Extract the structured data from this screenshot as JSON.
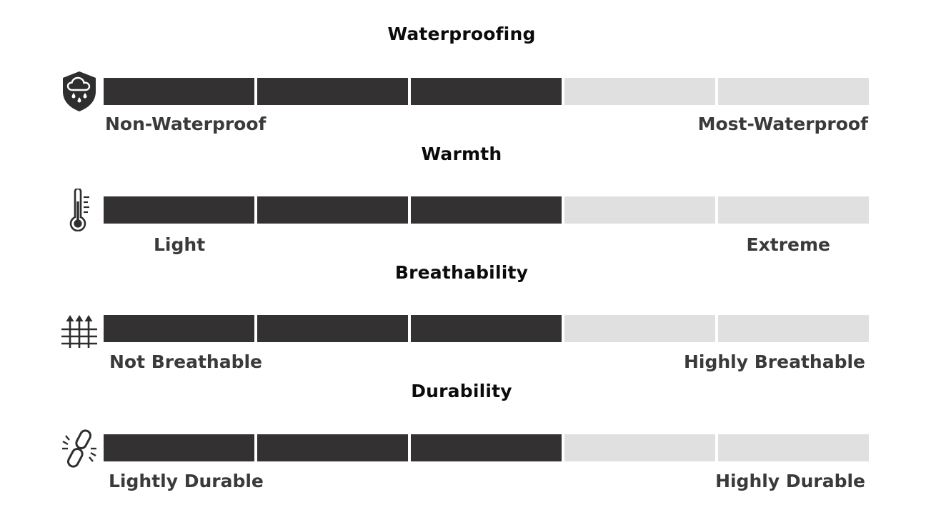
{
  "scale": {
    "segments": 5,
    "filled_color": "#333132",
    "empty_color": "#e0e0e0"
  },
  "sections": [
    {
      "title": "Waterproofing",
      "icon": "rain-shield-icon",
      "level": 3,
      "left_label": "Non-Waterproof",
      "right_label": "Most-Waterproof"
    },
    {
      "title": "Warmth",
      "icon": "thermometer-icon",
      "level": 3,
      "left_label": "Light",
      "right_label": "Extreme"
    },
    {
      "title": "Breathability",
      "icon": "breathable-fabric-icon",
      "level": 3,
      "left_label": "Not Breathable",
      "right_label": "Highly Breathable"
    },
    {
      "title": "Durability",
      "icon": "chain-link-icon",
      "level": 3,
      "left_label": "Lightly Durable",
      "right_label": "Highly Durable"
    }
  ]
}
